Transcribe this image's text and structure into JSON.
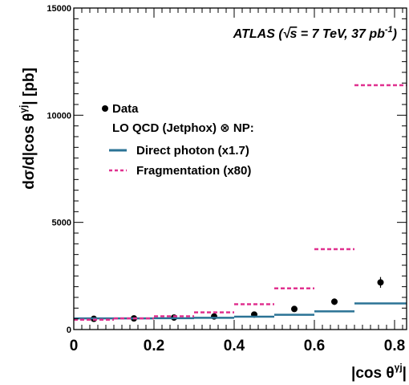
{
  "chart_data": {
    "type": "line",
    "title": "",
    "annotation": {
      "prefix": "ATLAS (",
      "sqrt_symbol": "√",
      "s": "s",
      "middle": " = 7 TeV, 37 pb",
      "sup": "-1",
      "suffix": ")"
    },
    "xlabel": {
      "text": "|cos θ",
      "sup": "γj",
      "suffix": "|"
    },
    "ylabel": {
      "text": "dσ/d|cos θ",
      "sup": "γj",
      "suffix": "| [pb]"
    },
    "xlim": [
      0,
      0.83
    ],
    "ylim": [
      0,
      15000
    ],
    "x_ticks": [
      {
        "value": 0,
        "label": "0"
      },
      {
        "value": 0.2,
        "label": "0.2"
      },
      {
        "value": 0.4,
        "label": "0.4"
      },
      {
        "value": 0.6,
        "label": "0.6"
      },
      {
        "value": 0.8,
        "label": "0.8"
      }
    ],
    "y_ticks": [
      {
        "value": 0,
        "label": "0"
      },
      {
        "value": 5000,
        "label": "5000"
      },
      {
        "value": 10000,
        "label": "10000"
      },
      {
        "value": 15000,
        "label": "15000"
      }
    ],
    "legend": {
      "position": "left",
      "data": "Data",
      "header": "LO QCD (Jetphox) ⊗ NP:",
      "direct": "Direct photon (x1.7)",
      "frag": "Fragmentation (x80)"
    },
    "colors": {
      "direct": "#2b7395",
      "frag": "#e0318f",
      "data": "#000000"
    },
    "series": [
      {
        "name": "Data",
        "style": "markers",
        "points": [
          {
            "x": 0.05,
            "y": 500,
            "err": 60
          },
          {
            "x": 0.15,
            "y": 520,
            "err": 60
          },
          {
            "x": 0.25,
            "y": 560,
            "err": 60
          },
          {
            "x": 0.35,
            "y": 610,
            "err": 60
          },
          {
            "x": 0.45,
            "y": 700,
            "err": 70
          },
          {
            "x": 0.55,
            "y": 960,
            "err": 90
          },
          {
            "x": 0.65,
            "y": 1300,
            "err": 150
          },
          {
            "x": 0.765,
            "y": 2200,
            "err": 250
          }
        ]
      },
      {
        "name": "Direct photon (x1.7)",
        "style": "solid-steps",
        "bins": [
          {
            "lo": 0.0,
            "hi": 0.1,
            "y": 520
          },
          {
            "lo": 0.1,
            "hi": 0.2,
            "y": 520
          },
          {
            "lo": 0.2,
            "hi": 0.3,
            "y": 530
          },
          {
            "lo": 0.3,
            "hi": 0.4,
            "y": 550
          },
          {
            "lo": 0.4,
            "hi": 0.5,
            "y": 600
          },
          {
            "lo": 0.5,
            "hi": 0.6,
            "y": 690
          },
          {
            "lo": 0.6,
            "hi": 0.7,
            "y": 850
          },
          {
            "lo": 0.7,
            "hi": 0.83,
            "y": 1220
          }
        ]
      },
      {
        "name": "Fragmentation (x80)",
        "style": "dashed-steps",
        "bins": [
          {
            "lo": 0.0,
            "hi": 0.1,
            "y": 460
          },
          {
            "lo": 0.1,
            "hi": 0.2,
            "y": 520
          },
          {
            "lo": 0.2,
            "hi": 0.3,
            "y": 620
          },
          {
            "lo": 0.3,
            "hi": 0.4,
            "y": 800
          },
          {
            "lo": 0.4,
            "hi": 0.5,
            "y": 1180
          },
          {
            "lo": 0.5,
            "hi": 0.6,
            "y": 1920
          },
          {
            "lo": 0.6,
            "hi": 0.7,
            "y": 3750
          },
          {
            "lo": 0.7,
            "hi": 0.83,
            "y": 11400
          }
        ]
      }
    ]
  }
}
